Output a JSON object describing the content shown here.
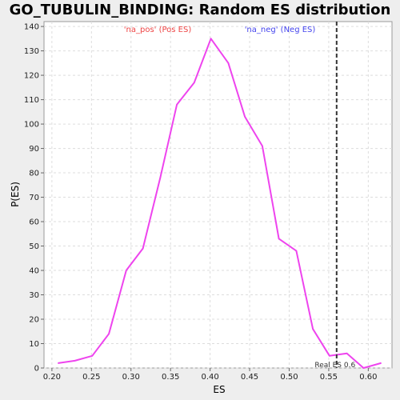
{
  "chart_data": {
    "type": "line",
    "title": "GO_TUBULIN_BINDING: Random ES distribution",
    "xlabel": "ES",
    "ylabel": "P(ES)",
    "xlim": [
      0.19,
      0.63
    ],
    "ylim": [
      0,
      142
    ],
    "x_ticks": [
      0.2,
      0.25,
      0.3,
      0.35,
      0.4,
      0.45,
      0.5,
      0.55,
      0.6
    ],
    "x_tick_labels": [
      "0.20",
      "0.25",
      "0.30",
      "0.35",
      "0.40",
      "0.45",
      "0.50",
      "0.55",
      "0.60"
    ],
    "y_ticks": [
      0,
      10,
      20,
      30,
      40,
      50,
      60,
      70,
      80,
      90,
      100,
      110,
      120,
      130,
      140
    ],
    "grid": true,
    "series": [
      {
        "color": "#ee44ee",
        "x": [
          0.208,
          0.229,
          0.251,
          0.272,
          0.294,
          0.315,
          0.337,
          0.358,
          0.38,
          0.401,
          0.423,
          0.444,
          0.466,
          0.487,
          0.509,
          0.53,
          0.551,
          0.573,
          0.594,
          0.616
        ],
        "y": [
          2,
          3,
          5,
          14,
          40,
          49,
          78,
          108,
          117,
          135,
          125,
          103,
          91,
          53,
          48,
          16,
          5,
          6,
          0,
          2
        ]
      }
    ],
    "legend": [
      {
        "label": "'na_pos' (Pos ES)",
        "color": "#ee4444"
      },
      {
        "label": "'na_neg' (Neg ES)",
        "color": "#4444ee"
      }
    ],
    "real_es": {
      "value": 0.56,
      "label": "Real ES 0.6"
    }
  }
}
